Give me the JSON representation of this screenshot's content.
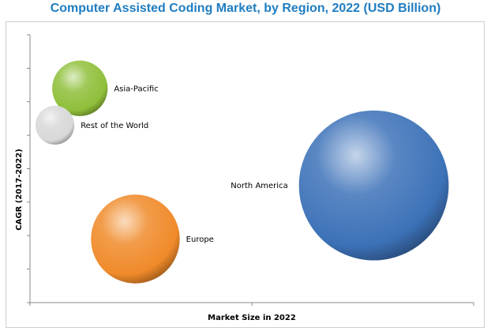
{
  "chart_data": {
    "type": "bubble",
    "title": "Computer Assisted Coding Market, by Region, 2022 (USD Billion)",
    "xlabel": "Market Size in 2022",
    "ylabel": "CAGR (2017-2022)",
    "xlim": [
      0,
      8
    ],
    "ylim": [
      0,
      8
    ],
    "grid": false,
    "legend": "none",
    "series": [
      {
        "name": "Asia-Pacific",
        "x": 0.9,
        "y": 6.4,
        "size": 0.5,
        "color": "#8fbf3a"
      },
      {
        "name": "Rest of the World",
        "x": 0.45,
        "y": 5.3,
        "size": 0.35,
        "color": "#d8d8d8"
      },
      {
        "name": "North America",
        "x": 6.2,
        "y": 3.5,
        "size": 1.35,
        "color": "#3d72b8"
      },
      {
        "name": "Europe",
        "x": 1.9,
        "y": 1.9,
        "size": 0.8,
        "color": "#f08a2a"
      }
    ]
  }
}
